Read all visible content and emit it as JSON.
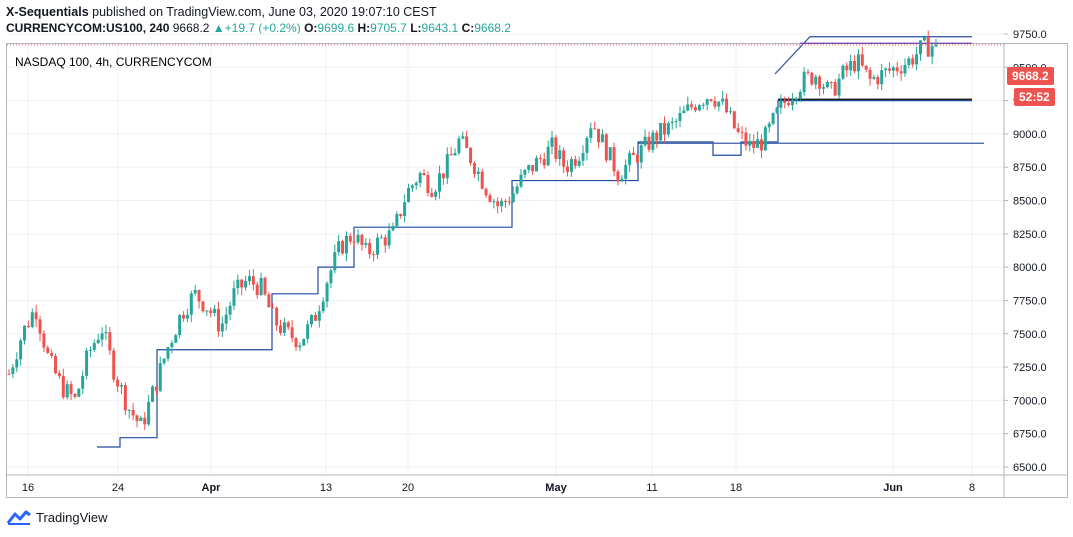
{
  "header": {
    "author": "X-Sequentials",
    "published": " published on TradingView.com, June 03, 2020 19:07:10 CEST",
    "symbol_line": "CURRENCYCOM:US100, 240",
    "last": "9668.2",
    "change_arrow": "▲",
    "change": "+19.7 (+0.2%)",
    "o_label": "O:",
    "o": "9699.6",
    "h_label": "H:",
    "h": "9705.7",
    "l_label": "L:",
    "l": "9643.1",
    "c_label": "C:",
    "c": "9668.2"
  },
  "legend_title": "NASDAQ 100, 4h, CURRENCYCOM",
  "price_tag": {
    "value": "9668.2",
    "countdown": "52:52",
    "color": "#ef5350"
  },
  "footer": {
    "brand": "TradingView",
    "logo_icon": "tradingview-logo-icon"
  },
  "colors": {
    "up": "#26a69a",
    "down": "#ef5350",
    "stop_line": "#1e4ba0",
    "level_line": "#3b5ea6",
    "purple_line": "#7a4bb0",
    "black_line": "#000000",
    "grid": "#eef0f3"
  },
  "chart_data": {
    "type": "candlestick",
    "title": "NASDAQ 100, 4h, CURRENCYCOM",
    "ylim": [
      6500,
      9800
    ],
    "y_ticks": [
      "9750.0",
      "9500.0",
      "9250.0",
      "9000.0",
      "8750.0",
      "8500.0",
      "8250.0",
      "8000.0",
      "7750.0",
      "7500.0",
      "7250.0",
      "7000.0",
      "6750.0",
      "6500.0"
    ],
    "x_ticks": [
      {
        "label": "16",
        "bold": false
      },
      {
        "label": "24",
        "bold": false
      },
      {
        "label": "Apr",
        "bold": true
      },
      {
        "label": "13",
        "bold": false
      },
      {
        "label": "20",
        "bold": false
      },
      {
        "label": "May",
        "bold": true
      },
      {
        "label": "11",
        "bold": false
      },
      {
        "label": "18",
        "bold": false
      },
      {
        "label": "Jun",
        "bold": true
      },
      {
        "label": "8",
        "bold": false
      }
    ],
    "trend_closes": [
      7200,
      7500,
      7700,
      7300,
      7100,
      7000,
      7350,
      7550,
      7200,
      6950,
      6800,
      7100,
      7400,
      7650,
      7800,
      7700,
      7550,
      7800,
      7900,
      7850,
      7600,
      7500,
      7450,
      7600,
      7900,
      8150,
      8250,
      8100,
      8200,
      8250,
      8550,
      8700,
      8600,
      8750,
      8950,
      8800,
      8600,
      8450,
      8550,
      8700,
      8800,
      8900,
      8750,
      8850,
      9100,
      8900,
      8700,
      8800,
      8900,
      9000,
      9050,
      9150,
      9250,
      9300,
      9200,
      9000,
      8900,
      8950,
      9150,
      9300,
      9400,
      9450,
      9300,
      9450,
      9550,
      9400,
      9450,
      9500,
      9550,
      9650,
      9668.2
    ],
    "last_price": 9668.2,
    "stop_levels": [
      6650,
      6720,
      7380,
      7800,
      8000,
      8300,
      8650,
      8940,
      8840,
      8940,
      9250
    ],
    "horizontal_levels": [
      {
        "name": "upper",
        "value": 9730
      },
      {
        "name": "upper-purple",
        "value": 9680
      },
      {
        "name": "mid-black",
        "value": 9260
      },
      {
        "name": "lower",
        "value": 8930
      }
    ]
  }
}
